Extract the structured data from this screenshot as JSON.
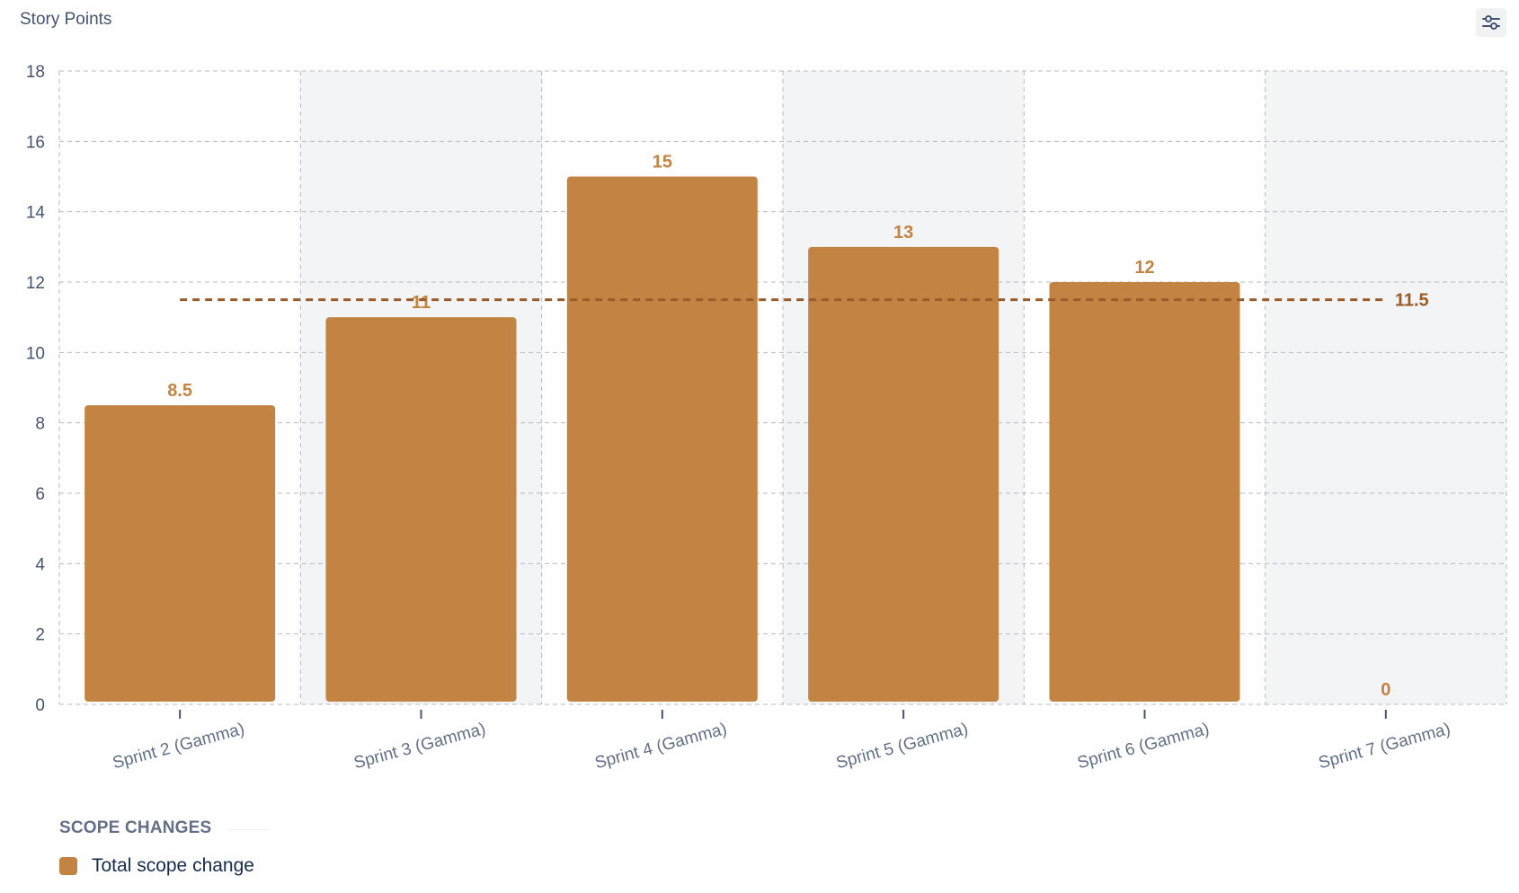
{
  "header": {
    "y_axis_title": "Story Points"
  },
  "toolbar": {
    "settings_icon": "sliders-icon"
  },
  "legend": {
    "heading": "SCOPE CHANGES",
    "items": [
      {
        "label": "Total scope change",
        "color": "#c38342"
      }
    ]
  },
  "colors": {
    "bar": "#c38342",
    "average_line": "#9a5b2a",
    "grid": "#b6bac3",
    "alt_band": "#f3f4f6",
    "tick_text": "#44546f",
    "category_text": "#626f86"
  },
  "chart_data": {
    "type": "bar",
    "title": "",
    "ylabel": "Story Points",
    "xlabel": "",
    "categories": [
      "Sprint 2 (Gamma)",
      "Sprint 3 (Gamma)",
      "Sprint 4 (Gamma)",
      "Sprint 5 (Gamma)",
      "Sprint 6 (Gamma)",
      "Sprint 7 (Gamma)"
    ],
    "series": [
      {
        "name": "Total scope change",
        "values": [
          8.5,
          11,
          15,
          13,
          12,
          0
        ],
        "labels": [
          "8.5",
          "11",
          "15",
          "13",
          "12",
          "0"
        ]
      }
    ],
    "reference_line": {
      "value": 11.5,
      "label": "11.5",
      "style": "dashed"
    },
    "ylim": [
      0,
      18
    ],
    "yticks": [
      "0",
      "2",
      "4",
      "6",
      "8",
      "10",
      "12",
      "14",
      "16",
      "18"
    ],
    "grid": true,
    "legend_position": "bottom-left"
  }
}
